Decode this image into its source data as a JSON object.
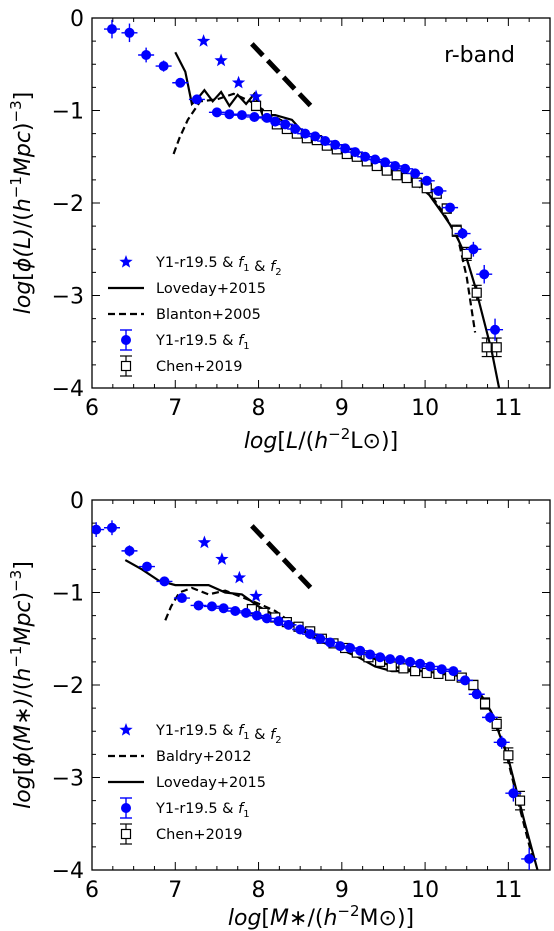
{
  "chart_data": [
    {
      "type": "scatter",
      "annotation": "r-band",
      "xlabel": "log[L/(h^-2 L⊙)]",
      "ylabel": "log[φ(L)/(h^-1 Mpc)^-3]",
      "xlim": [
        6,
        11.5
      ],
      "ylim": [
        -4,
        0
      ],
      "xticks": [
        "6",
        "7",
        "8",
        "9",
        "10",
        "11"
      ],
      "yticks": [
        "0",
        "−1",
        "−2",
        "−3",
        "−4"
      ],
      "legend_position": "lower-left",
      "series": [
        {
          "name": "Y1-r19.5 & f1 & f2",
          "style": "star",
          "color": "#0000ff",
          "x": [
            7.34,
            7.55,
            7.76,
            7.97
          ],
          "y": [
            -0.25,
            -0.46,
            -0.7,
            -0.85
          ]
        },
        {
          "name": "Loveday+2015",
          "style": "solid",
          "color": "#000000",
          "x": [
            7.0,
            7.12,
            7.2,
            7.26,
            7.35,
            7.45,
            7.55,
            7.65,
            7.75,
            7.85,
            7.95,
            8.05,
            8.2,
            8.4,
            8.6,
            8.8,
            9.0,
            9.2,
            9.4,
            9.6,
            9.8,
            10.0,
            10.2,
            10.35,
            10.5,
            10.6,
            10.7,
            10.8,
            10.9
          ],
          "y": [
            -0.37,
            -0.58,
            -0.93,
            -0.88,
            -0.78,
            -0.9,
            -0.8,
            -0.95,
            -0.83,
            -0.93,
            -0.82,
            -1.05,
            -1.05,
            -1.1,
            -1.3,
            -1.38,
            -1.45,
            -1.5,
            -1.58,
            -1.65,
            -1.72,
            -1.85,
            -2.1,
            -2.3,
            -2.6,
            -2.9,
            -3.25,
            -3.6,
            -4.05
          ]
        },
        {
          "name": "Blanton+2005",
          "style": "dashed",
          "color": "#000000",
          "x": [
            6.98,
            7.05,
            7.15,
            7.3,
            7.5,
            7.7,
            7.9,
            8.1,
            8.3,
            8.5,
            8.7,
            8.9,
            9.1,
            9.3,
            9.5,
            9.7,
            9.9,
            10.1,
            10.25,
            10.4,
            10.5,
            10.6
          ],
          "y": [
            -1.47,
            -1.3,
            -1.1,
            -0.9,
            -0.88,
            -0.82,
            -0.9,
            -1.02,
            -1.12,
            -1.2,
            -1.33,
            -1.4,
            -1.5,
            -1.55,
            -1.62,
            -1.7,
            -1.8,
            -1.95,
            -2.15,
            -2.4,
            -2.8,
            -3.4
          ]
        },
        {
          "name": "Y1-r19.5 & f1",
          "style": "circle-err",
          "color": "#0000ff",
          "x": [
            6.24,
            6.45,
            6.65,
            6.86,
            7.06,
            7.26,
            7.5,
            7.65,
            7.8,
            7.95,
            8.1,
            8.2,
            8.32,
            8.44,
            8.56,
            8.68,
            8.8,
            8.92,
            9.04,
            9.16,
            9.28,
            9.4,
            9.52,
            9.64,
            9.76,
            9.88,
            10.02,
            10.16,
            10.3,
            10.45,
            10.58,
            10.71,
            10.84
          ],
          "y": [
            -0.12,
            -0.16,
            -0.4,
            -0.52,
            -0.7,
            -0.88,
            -1.02,
            -1.04,
            -1.05,
            -1.07,
            -1.08,
            -1.12,
            -1.15,
            -1.2,
            -1.25,
            -1.28,
            -1.33,
            -1.37,
            -1.41,
            -1.45,
            -1.5,
            -1.53,
            -1.56,
            -1.6,
            -1.63,
            -1.68,
            -1.76,
            -1.87,
            -2.05,
            -2.33,
            -2.5,
            -2.77,
            -3.37
          ],
          "yerr": [
            0.1,
            0.1,
            0.08,
            0.06,
            0.05,
            0.04,
            0.04,
            0.03,
            0.03,
            0.03,
            0.03,
            0.03,
            0.03,
            0.03,
            0.03,
            0.03,
            0.03,
            0.03,
            0.03,
            0.03,
            0.03,
            0.03,
            0.03,
            0.03,
            0.03,
            0.03,
            0.03,
            0.04,
            0.05,
            0.06,
            0.08,
            0.1,
            0.12
          ]
        },
        {
          "name": "Chen+2019",
          "style": "square-err",
          "color": "#000000",
          "x": [
            7.97,
            8.1,
            8.22,
            8.34,
            8.46,
            8.58,
            8.7,
            8.82,
            8.94,
            9.06,
            9.18,
            9.3,
            9.42,
            9.54,
            9.66,
            9.78,
            9.9,
            10.02,
            10.14,
            10.26,
            10.38,
            10.5,
            10.62,
            10.74,
            10.86
          ],
          "y": [
            -0.95,
            -1.05,
            -1.15,
            -1.2,
            -1.25,
            -1.3,
            -1.32,
            -1.38,
            -1.42,
            -1.47,
            -1.5,
            -1.55,
            -1.6,
            -1.65,
            -1.7,
            -1.73,
            -1.78,
            -1.84,
            -1.9,
            -2.06,
            -2.3,
            -2.55,
            -2.97,
            -3.56,
            -3.56
          ],
          "yerr": [
            0.05,
            0.04,
            0.04,
            0.03,
            0.03,
            0.03,
            0.03,
            0.03,
            0.03,
            0.03,
            0.03,
            0.03,
            0.03,
            0.03,
            0.03,
            0.03,
            0.03,
            0.03,
            0.04,
            0.05,
            0.06,
            0.07,
            0.08,
            0.1,
            0.1
          ]
        }
      ],
      "reference_line": {
        "style": "thick-dashed",
        "x": [
          7.92,
          8.68
        ],
        "y": [
          -0.28,
          -1.0
        ]
      }
    },
    {
      "type": "scatter",
      "annotation": "",
      "xlabel": "log[M*/(h^-2 M⊙)]",
      "ylabel": "log[φ(M*)/(h^-1 Mpc)^-3]",
      "xlim": [
        6,
        11.5
      ],
      "ylim": [
        -4,
        0
      ],
      "xticks": [
        "6",
        "7",
        "8",
        "9",
        "10",
        "11"
      ],
      "yticks": [
        "0",
        "−1",
        "−2",
        "−3",
        "−4"
      ],
      "legend_position": "lower-left",
      "series": [
        {
          "name": "Y1-r19.5 & f1 & f2",
          "style": "star",
          "color": "#0000ff",
          "x": [
            7.35,
            7.56,
            7.77,
            7.97
          ],
          "y": [
            -0.46,
            -0.64,
            -0.84,
            -1.04
          ]
        },
        {
          "name": "Baldry+2012",
          "style": "dashed",
          "color": "#000000",
          "x": [
            6.88,
            6.95,
            7.05,
            7.2,
            7.4,
            7.6,
            7.8,
            8.0,
            8.2,
            8.4,
            8.6,
            8.8,
            9.0,
            9.2,
            9.4,
            9.6,
            9.8,
            10.0,
            10.2,
            10.4,
            10.6,
            10.8,
            10.95,
            11.1,
            11.3
          ],
          "y": [
            -1.3,
            -1.15,
            -1.0,
            -0.95,
            -1.02,
            -0.98,
            -1.05,
            -1.12,
            -1.2,
            -1.33,
            -1.42,
            -1.5,
            -1.55,
            -1.63,
            -1.72,
            -1.8,
            -1.83,
            -1.85,
            -1.87,
            -1.9,
            -2.0,
            -2.3,
            -2.65,
            -3.2,
            -3.9
          ]
        },
        {
          "name": "Loveday+2015",
          "style": "solid",
          "color": "#000000",
          "x": [
            6.4,
            6.6,
            6.8,
            7.0,
            7.2,
            7.4,
            7.6,
            7.8,
            8.0,
            8.2,
            8.4,
            8.6,
            8.8,
            9.0,
            9.2,
            9.4,
            9.6,
            9.8,
            10.0,
            10.2,
            10.4,
            10.6,
            10.8,
            11.0,
            11.2,
            11.35
          ],
          "y": [
            -0.65,
            -0.75,
            -0.87,
            -0.92,
            -0.92,
            -0.92,
            -1.0,
            -1.02,
            -1.15,
            -1.25,
            -1.35,
            -1.45,
            -1.55,
            -1.62,
            -1.7,
            -1.8,
            -1.85,
            -1.85,
            -1.85,
            -1.88,
            -1.9,
            -2.0,
            -2.3,
            -2.8,
            -3.5,
            -4.0
          ]
        },
        {
          "name": "Y1-r19.5 & f1",
          "style": "circle-err",
          "color": "#0000ff",
          "x": [
            6.05,
            6.24,
            6.45,
            6.66,
            6.87,
            7.08,
            7.28,
            7.44,
            7.58,
            7.72,
            7.85,
            7.98,
            8.1,
            8.24,
            8.36,
            8.5,
            8.62,
            8.74,
            8.86,
            8.98,
            9.1,
            9.22,
            9.34,
            9.46,
            9.58,
            9.7,
            9.82,
            9.94,
            10.06,
            10.2,
            10.34,
            10.48,
            10.62,
            10.78,
            10.92,
            11.06,
            11.25
          ],
          "y": [
            -0.32,
            -0.3,
            -0.55,
            -0.72,
            -0.88,
            -1.06,
            -1.14,
            -1.15,
            -1.17,
            -1.2,
            -1.22,
            -1.25,
            -1.28,
            -1.31,
            -1.35,
            -1.4,
            -1.45,
            -1.5,
            -1.54,
            -1.58,
            -1.6,
            -1.63,
            -1.67,
            -1.7,
            -1.72,
            -1.73,
            -1.75,
            -1.77,
            -1.8,
            -1.83,
            -1.85,
            -1.95,
            -2.1,
            -2.35,
            -2.62,
            -3.17,
            -3.88
          ],
          "yerr": [
            0.08,
            0.08,
            0.06,
            0.05,
            0.04,
            0.04,
            0.03,
            0.03,
            0.03,
            0.03,
            0.03,
            0.03,
            0.03,
            0.03,
            0.03,
            0.03,
            0.03,
            0.03,
            0.03,
            0.03,
            0.03,
            0.03,
            0.03,
            0.03,
            0.03,
            0.03,
            0.03,
            0.03,
            0.03,
            0.03,
            0.03,
            0.04,
            0.05,
            0.06,
            0.07,
            0.09,
            0.12
          ]
        },
        {
          "name": "Chen+2019",
          "style": "square-err",
          "color": "#000000",
          "x": [
            7.92,
            8.06,
            8.2,
            8.34,
            8.48,
            8.62,
            8.76,
            8.9,
            9.04,
            9.18,
            9.32,
            9.46,
            9.6,
            9.74,
            9.88,
            10.02,
            10.16,
            10.3,
            10.44,
            10.58,
            10.72,
            10.86,
            11.0,
            11.14
          ],
          "y": [
            -1.18,
            -1.22,
            -1.27,
            -1.32,
            -1.37,
            -1.42,
            -1.5,
            -1.55,
            -1.6,
            -1.65,
            -1.7,
            -1.75,
            -1.8,
            -1.82,
            -1.85,
            -1.87,
            -1.88,
            -1.9,
            -1.92,
            -2.0,
            -2.2,
            -2.42,
            -2.76,
            -3.25
          ],
          "yerr": [
            0.05,
            0.04,
            0.04,
            0.03,
            0.03,
            0.03,
            0.03,
            0.03,
            0.03,
            0.03,
            0.03,
            0.03,
            0.03,
            0.03,
            0.03,
            0.03,
            0.03,
            0.03,
            0.04,
            0.05,
            0.06,
            0.07,
            0.08,
            0.1
          ]
        }
      ],
      "reference_line": {
        "style": "thick-dashed",
        "x": [
          7.92,
          8.68
        ],
        "y": [
          -0.28,
          -1.0
        ]
      }
    }
  ]
}
